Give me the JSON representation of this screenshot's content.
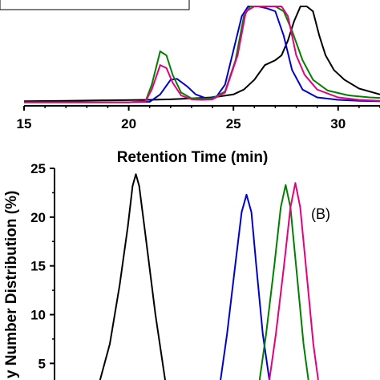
{
  "chart_data": [
    {
      "panel": "A",
      "type": "line",
      "xlabel": "Retention Time (min)",
      "ylabel": "",
      "xlim": [
        15,
        32
      ],
      "ylim": [
        0,
        1
      ],
      "xticks": [
        "15",
        "20",
        "25",
        "30"
      ],
      "x_tick_values": [
        15,
        20,
        25,
        30
      ],
      "grid": false,
      "series": [
        {
          "color": "#000000",
          "points": [
            [
              15.0,
              0.03
            ],
            [
              17,
              0.035
            ],
            [
              19,
              0.04
            ],
            [
              21,
              0.045
            ],
            [
              22,
              0.05
            ],
            [
              23,
              0.06
            ],
            [
              24,
              0.07
            ],
            [
              25,
              0.1
            ],
            [
              25.5,
              0.15
            ],
            [
              26,
              0.25
            ],
            [
              26.5,
              0.4
            ],
            [
              27,
              0.45
            ],
            [
              27.3,
              0.5
            ],
            [
              27.6,
              0.65
            ],
            [
              27.9,
              0.85
            ],
            [
              28.2,
              1.0
            ],
            [
              28.5,
              1.0
            ],
            [
              28.8,
              0.95
            ],
            [
              29.1,
              0.7
            ],
            [
              29.4,
              0.5
            ],
            [
              29.8,
              0.35
            ],
            [
              30.3,
              0.25
            ],
            [
              31,
              0.16
            ],
            [
              32,
              0.1
            ]
          ]
        },
        {
          "color": "#0000cc",
          "points": [
            [
              15.0,
              0.02
            ],
            [
              20,
              0.02
            ],
            [
              21,
              0.025
            ],
            [
              21.5,
              0.1
            ],
            [
              22.0,
              0.25
            ],
            [
              22.3,
              0.26
            ],
            [
              22.8,
              0.18
            ],
            [
              23.2,
              0.1
            ],
            [
              23.7,
              0.06
            ],
            [
              24.2,
              0.08
            ],
            [
              24.6,
              0.2
            ],
            [
              25.0,
              0.55
            ],
            [
              25.4,
              0.9
            ],
            [
              25.7,
              1.0
            ],
            [
              26.2,
              1.0
            ],
            [
              26.6,
              0.98
            ],
            [
              27.0,
              0.95
            ],
            [
              27.4,
              0.7
            ],
            [
              27.8,
              0.35
            ],
            [
              28.3,
              0.15
            ],
            [
              29,
              0.07
            ],
            [
              30,
              0.045
            ],
            [
              31,
              0.035
            ],
            [
              32,
              0.03
            ]
          ]
        },
        {
          "color": "#008000",
          "points": [
            [
              15.0,
              0.02
            ],
            [
              20,
              0.02
            ],
            [
              20.8,
              0.03
            ],
            [
              21.1,
              0.2
            ],
            [
              21.5,
              0.54
            ],
            [
              21.8,
              0.5
            ],
            [
              22.1,
              0.3
            ],
            [
              22.5,
              0.12
            ],
            [
              23.0,
              0.06
            ],
            [
              23.5,
              0.055
            ],
            [
              24.0,
              0.06
            ],
            [
              24.6,
              0.13
            ],
            [
              25.1,
              0.45
            ],
            [
              25.5,
              0.9
            ],
            [
              25.8,
              1.0
            ],
            [
              27.0,
              1.0
            ],
            [
              27.4,
              0.95
            ],
            [
              27.8,
              0.75
            ],
            [
              28.3,
              0.45
            ],
            [
              28.8,
              0.25
            ],
            [
              29.5,
              0.14
            ],
            [
              30.5,
              0.09
            ],
            [
              31.5,
              0.07
            ],
            [
              32,
              0.065
            ]
          ]
        },
        {
          "color": "#e6007e",
          "points": [
            [
              15.0,
              0.02
            ],
            [
              20,
              0.02
            ],
            [
              20.8,
              0.03
            ],
            [
              21.1,
              0.15
            ],
            [
              21.5,
              0.4
            ],
            [
              21.8,
              0.37
            ],
            [
              22.1,
              0.22
            ],
            [
              22.5,
              0.09
            ],
            [
              23.0,
              0.05
            ],
            [
              23.5,
              0.045
            ],
            [
              24.0,
              0.05
            ],
            [
              24.6,
              0.12
            ],
            [
              25.2,
              0.5
            ],
            [
              25.6,
              0.95
            ],
            [
              26.0,
              1.0
            ],
            [
              27.3,
              1.0
            ],
            [
              27.6,
              0.9
            ],
            [
              28.0,
              0.5
            ],
            [
              28.4,
              0.3
            ],
            [
              29.0,
              0.15
            ],
            [
              30.0,
              0.07
            ],
            [
              31.0,
              0.045
            ],
            [
              32,
              0.035
            ]
          ]
        }
      ]
    },
    {
      "panel": "B",
      "type": "line",
      "xlabel": "",
      "ylabel": "y Number Distribution (%)",
      "ylim": [
        3.3,
        25
      ],
      "xlim": [
        0,
        1
      ],
      "yticks": [
        "25",
        "20",
        "15",
        "10",
        "5"
      ],
      "y_tick_values": [
        25,
        20,
        15,
        10,
        5
      ],
      "annotation": "(B)",
      "grid": false,
      "series": [
        {
          "color": "#000000",
          "points": [
            [
              0.14,
              3.3
            ],
            [
              0.17,
              7
            ],
            [
              0.2,
              13
            ],
            [
              0.225,
              19
            ],
            [
              0.24,
              23.2
            ],
            [
              0.25,
              24.4
            ],
            [
              0.26,
              23.2
            ],
            [
              0.28,
              18
            ],
            [
              0.31,
              10
            ],
            [
              0.34,
              3.3
            ]
          ]
        },
        {
          "color": "#0000cc",
          "points": [
            [
              0.51,
              3.3
            ],
            [
              0.53,
              8
            ],
            [
              0.555,
              15
            ],
            [
              0.575,
              20.5
            ],
            [
              0.59,
              22.3
            ],
            [
              0.605,
              20.5
            ],
            [
              0.62,
              15
            ],
            [
              0.64,
              8
            ],
            [
              0.66,
              3.3
            ]
          ]
        },
        {
          "color": "#008000",
          "points": [
            [
              0.63,
              3.3
            ],
            [
              0.65,
              8
            ],
            [
              0.675,
              15
            ],
            [
              0.695,
              21
            ],
            [
              0.71,
              23.3
            ],
            [
              0.725,
              21
            ],
            [
              0.745,
              14
            ],
            [
              0.765,
              7
            ],
            [
              0.78,
              3.3
            ]
          ]
        },
        {
          "color": "#e6007e",
          "points": [
            [
              0.66,
              3.3
            ],
            [
              0.68,
              8
            ],
            [
              0.705,
              15
            ],
            [
              0.725,
              21
            ],
            [
              0.74,
              23.5
            ],
            [
              0.755,
              21
            ],
            [
              0.775,
              14
            ],
            [
              0.795,
              7
            ],
            [
              0.81,
              3.3
            ]
          ]
        }
      ]
    }
  ]
}
